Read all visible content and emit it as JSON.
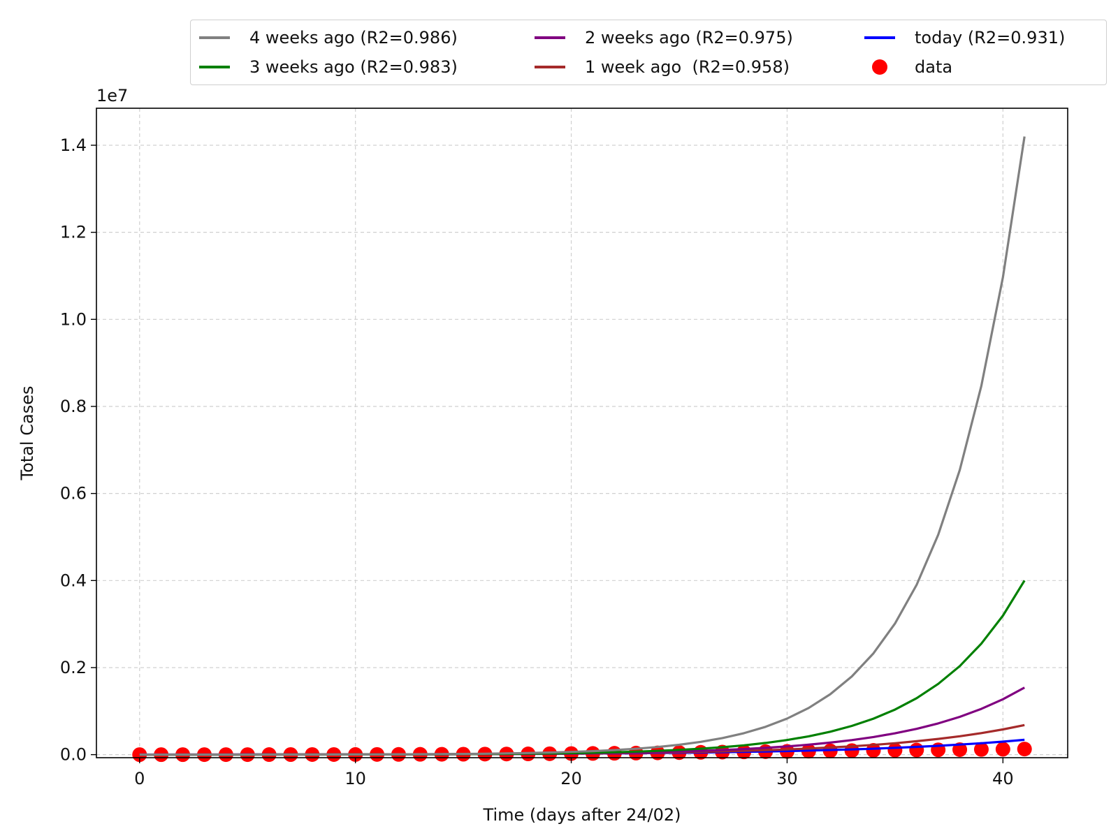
{
  "chart_data": {
    "type": "line",
    "xlabel": "Time (days after 24/02)",
    "ylabel": "Total Cases",
    "y_offset_label": "1e7",
    "y_multiplier": 10000000,
    "xlim": [
      -2,
      43
    ],
    "ylim": [
      -70000,
      14850000
    ],
    "xticks": [
      0,
      10,
      20,
      30,
      40
    ],
    "yticks": [
      0,
      2000000,
      4000000,
      6000000,
      8000000,
      10000000,
      12000000,
      14000000
    ],
    "ytick_labels": [
      "0.0",
      "0.2",
      "0.4",
      "0.6",
      "0.8",
      "1.0",
      "1.2",
      "1.4"
    ],
    "grid": true,
    "legend_position": "top, above plot area",
    "series": [
      {
        "name": "4 weeks ago (R2=0.986)",
        "color": "#808080",
        "type": "line",
        "x0": 0,
        "x1": 41,
        "y_end": 14200000,
        "growth": 0.2584
      },
      {
        "name": "3 weeks ago (R2=0.983)",
        "color": "#008000",
        "type": "line",
        "x0": 0,
        "x1": 41,
        "y_end": 4000000,
        "growth": 0.2252
      },
      {
        "name": "2 weeks ago (R2=0.975)",
        "color": "#800080",
        "type": "line",
        "x0": 0,
        "x1": 41,
        "y_end": 1540000,
        "growth": 0.1908
      },
      {
        "name": "1 week ago  (R2=0.958)",
        "color": "#a52a2a",
        "type": "line",
        "x0": 0,
        "x1": 41,
        "y_end": 680000,
        "growth": 0.1584
      },
      {
        "name": "today (R2=0.931)",
        "color": "#0000ff",
        "type": "line",
        "x0": 0,
        "x1": 41,
        "y_end": 340000,
        "growth": 0.1291
      },
      {
        "name": "data",
        "color": "#ff0000",
        "type": "scatter",
        "x": [
          0,
          1,
          2,
          3,
          4,
          5,
          6,
          7,
          8,
          9,
          10,
          11,
          12,
          13,
          14,
          15,
          16,
          17,
          18,
          19,
          20,
          21,
          22,
          23,
          24,
          25,
          26,
          27,
          28,
          29,
          30,
          31,
          32,
          33,
          34,
          35,
          36,
          37,
          38,
          39,
          40,
          41
        ],
        "y": [
          229,
          322,
          400,
          650,
          888,
          1128,
          1694,
          2036,
          2502,
          3089,
          3858,
          4636,
          5883,
          7375,
          9172,
          10149,
          12462,
          15113,
          17660,
          21157,
          24747,
          27980,
          31506,
          35713,
          41035,
          47021,
          53578,
          59138,
          63927,
          69176,
          74386,
          80539,
          86498,
          92472,
          97689,
          101739,
          105792,
          110574,
          115242,
          119827,
          124632,
          128948
        ]
      }
    ]
  }
}
